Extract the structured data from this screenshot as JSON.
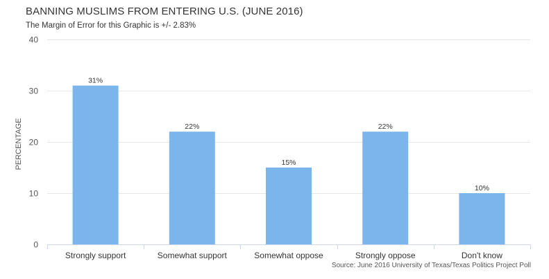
{
  "chart_data": {
    "type": "bar",
    "title": "BANNING MUSLIMS FROM ENTERING U.S. (JUNE 2016)",
    "subtitle": "The Margin of Error for this Graphic is +/- 2.83%",
    "ylabel": "PERCENTAGE",
    "xlabel": "",
    "ylim": [
      0,
      40
    ],
    "yticks": [
      0,
      10,
      20,
      30,
      40
    ],
    "grid": true,
    "legend": "none",
    "categories": [
      "Strongly support",
      "Somewhat support",
      "Somewhat oppose",
      "Strongly oppose",
      "Don't know"
    ],
    "values": [
      31,
      22,
      15,
      22,
      10
    ],
    "value_labels": [
      "31%",
      "22%",
      "15%",
      "22%",
      "10%"
    ],
    "bar_color": "#7cb5ec",
    "source": "Source: June 2016 University of Texas/Texas Politics Project Poll"
  }
}
